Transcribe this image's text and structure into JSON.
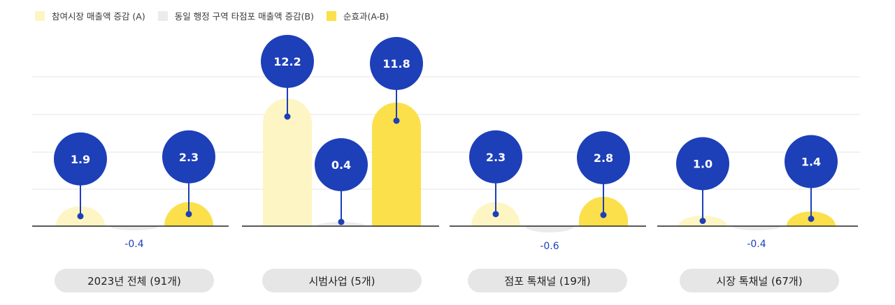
{
  "legend": [
    {
      "label": "참여시장 매출액 증감 (A)",
      "color": "#fdf5c4"
    },
    {
      "label": "동일 행정 구역 타점포 매출액 증감(B)",
      "color": "#ebebeb"
    },
    {
      "label": "순효과(A-B)",
      "color": "#fbe04b"
    }
  ],
  "colors": {
    "bubble": "#1d3fb8",
    "axis": "#222222",
    "grid": "#e4e4e4",
    "neg_label": "#1d3fb8"
  },
  "chart_data": {
    "type": "bar",
    "series_names": [
      "참여시장 매출액 증감 (A)",
      "동일 행정 구역 타점포 매출액 증감(B)",
      "순효과(A-B)"
    ],
    "groups": [
      {
        "label": "2023년 전체 (91개)",
        "A": 1.9,
        "B": -0.4,
        "net": 2.3
      },
      {
        "label": "시범사업 (5개)",
        "A": 12.2,
        "B": 0.4,
        "net": 11.8
      },
      {
        "label": "점포 톡채널 (19개)",
        "A": 2.3,
        "B": -0.6,
        "net": 2.8
      },
      {
        "label": "시장 톡채널 (67개)",
        "A": 1.0,
        "B": -0.4,
        "net": 1.4
      }
    ],
    "bubble_labels": [
      [
        "1.9",
        "-0.4",
        "2.3"
      ],
      [
        "12.2",
        "0.4",
        "11.8"
      ],
      [
        "2.3",
        "-0.6",
        "2.8"
      ],
      [
        "1.0",
        "-0.4",
        "1.4"
      ]
    ],
    "ylim": [
      0,
      14
    ],
    "gridlines": true
  }
}
